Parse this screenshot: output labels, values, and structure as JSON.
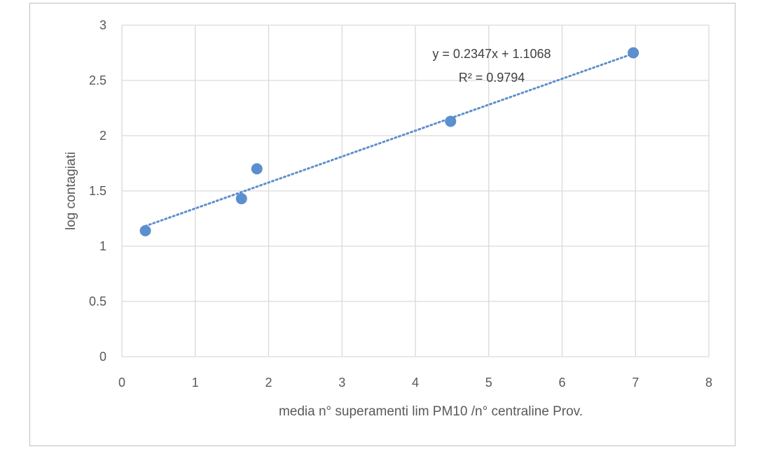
{
  "chart_data": {
    "type": "scatter",
    "x": [
      0.32,
      1.63,
      1.84,
      4.48,
      6.97
    ],
    "y": [
      1.14,
      1.43,
      1.7,
      2.13,
      2.75
    ],
    "xlabel": "media n° superamenti lim PM10 /n° centraline Prov.",
    "ylabel": "log contagiati",
    "xlim": [
      0,
      8
    ],
    "ylim": [
      0,
      3
    ],
    "xticks": [
      "0",
      "1",
      "2",
      "3",
      "4",
      "5",
      "6",
      "7",
      "8"
    ],
    "yticks": [
      "0",
      "0.5",
      "1",
      "1.5",
      "2",
      "2.5",
      "3"
    ],
    "grid": true,
    "trendline": {
      "type": "linear",
      "slope": 0.2347,
      "intercept": 1.1068,
      "equation_label": "y = 0.2347x + 1.1068",
      "r2_label": "R² = 0.9794"
    },
    "colors": {
      "marker": "#5b8fcf",
      "trendline": "#5b8fcf",
      "grid": "#d9d9d9"
    }
  }
}
